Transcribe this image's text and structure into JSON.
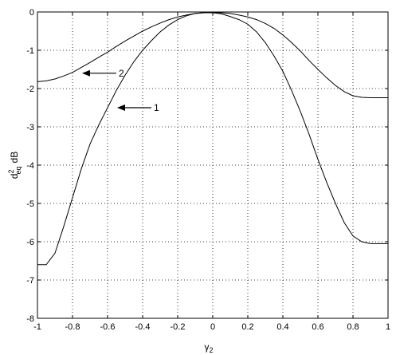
{
  "chart_data": {
    "type": "line",
    "title": "",
    "xlabel": "γ",
    "xlabel_sub": "2",
    "ylabel_parts": {
      "base": "d",
      "sup": "2",
      "sub": "eq",
      "unit": "dB"
    },
    "xlim": [
      -1,
      1
    ],
    "ylim": [
      -8,
      0
    ],
    "grid": true,
    "xticks": [
      -1,
      -0.8,
      -0.6,
      -0.4,
      -0.2,
      0,
      0.2,
      0.4,
      0.6,
      0.8,
      1
    ],
    "xtick_labels": [
      "-1",
      "-0.8",
      "-0.6",
      "-0.4",
      "-0.2",
      "0",
      "0.2",
      "0.4",
      "0.6",
      "0.8",
      "1"
    ],
    "yticks": [
      0,
      -1,
      -2,
      -3,
      -4,
      -5,
      -6,
      -7,
      -8
    ],
    "ytick_labels": [
      "0",
      "-1",
      "-2",
      "-3",
      "-4",
      "-5",
      "-6",
      "-7",
      "-8"
    ],
    "series": [
      {
        "label": "1",
        "x": [
          -1,
          -0.95,
          -0.9,
          -0.85,
          -0.8,
          -0.75,
          -0.7,
          -0.65,
          -0.6,
          -0.55,
          -0.5,
          -0.45,
          -0.4,
          -0.35,
          -0.3,
          -0.25,
          -0.2,
          -0.15,
          -0.1,
          -0.05,
          0,
          0.05,
          0.1,
          0.15,
          0.2,
          0.25,
          0.3,
          0.35,
          0.4,
          0.45,
          0.5,
          0.55,
          0.6,
          0.65,
          0.7,
          0.75,
          0.8,
          0.85,
          0.9,
          0.95,
          1
        ],
        "y": [
          -6.6,
          -6.6,
          -6.3,
          -5.6,
          -4.85,
          -4.1,
          -3.45,
          -2.95,
          -2.5,
          -2.05,
          -1.65,
          -1.3,
          -1.0,
          -0.75,
          -0.52,
          -0.34,
          -0.2,
          -0.1,
          -0.04,
          -0.02,
          -0.02,
          -0.05,
          -0.12,
          -0.2,
          -0.32,
          -0.52,
          -0.8,
          -1.15,
          -1.55,
          -2.05,
          -2.6,
          -3.2,
          -3.85,
          -4.45,
          -5.0,
          -5.5,
          -5.85,
          -6.0,
          -6.05,
          -6.05,
          -6.05
        ]
      },
      {
        "label": "2",
        "x": [
          -1,
          -0.95,
          -0.9,
          -0.85,
          -0.8,
          -0.75,
          -0.7,
          -0.65,
          -0.6,
          -0.55,
          -0.5,
          -0.45,
          -0.4,
          -0.35,
          -0.3,
          -0.25,
          -0.2,
          -0.15,
          -0.1,
          -0.05,
          0,
          0.05,
          0.1,
          0.15,
          0.2,
          0.25,
          0.3,
          0.35,
          0.4,
          0.45,
          0.5,
          0.55,
          0.6,
          0.65,
          0.7,
          0.75,
          0.8,
          0.85,
          0.9,
          0.95,
          1
        ],
        "y": [
          -1.82,
          -1.8,
          -1.75,
          -1.67,
          -1.58,
          -1.45,
          -1.32,
          -1.18,
          -1.05,
          -0.9,
          -0.76,
          -0.63,
          -0.5,
          -0.39,
          -0.29,
          -0.2,
          -0.13,
          -0.08,
          -0.04,
          -0.02,
          -0.01,
          -0.02,
          -0.04,
          -0.08,
          -0.13,
          -0.2,
          -0.3,
          -0.43,
          -0.6,
          -0.8,
          -1.02,
          -1.27,
          -1.5,
          -1.72,
          -1.92,
          -2.08,
          -2.19,
          -2.23,
          -2.24,
          -2.24,
          -2.24
        ]
      }
    ],
    "annotations": [
      {
        "text": "1",
        "arrow_to": [
          -0.55,
          -2.5
        ]
      },
      {
        "text": "2",
        "arrow_to": [
          -0.75,
          -1.6
        ]
      }
    ]
  }
}
